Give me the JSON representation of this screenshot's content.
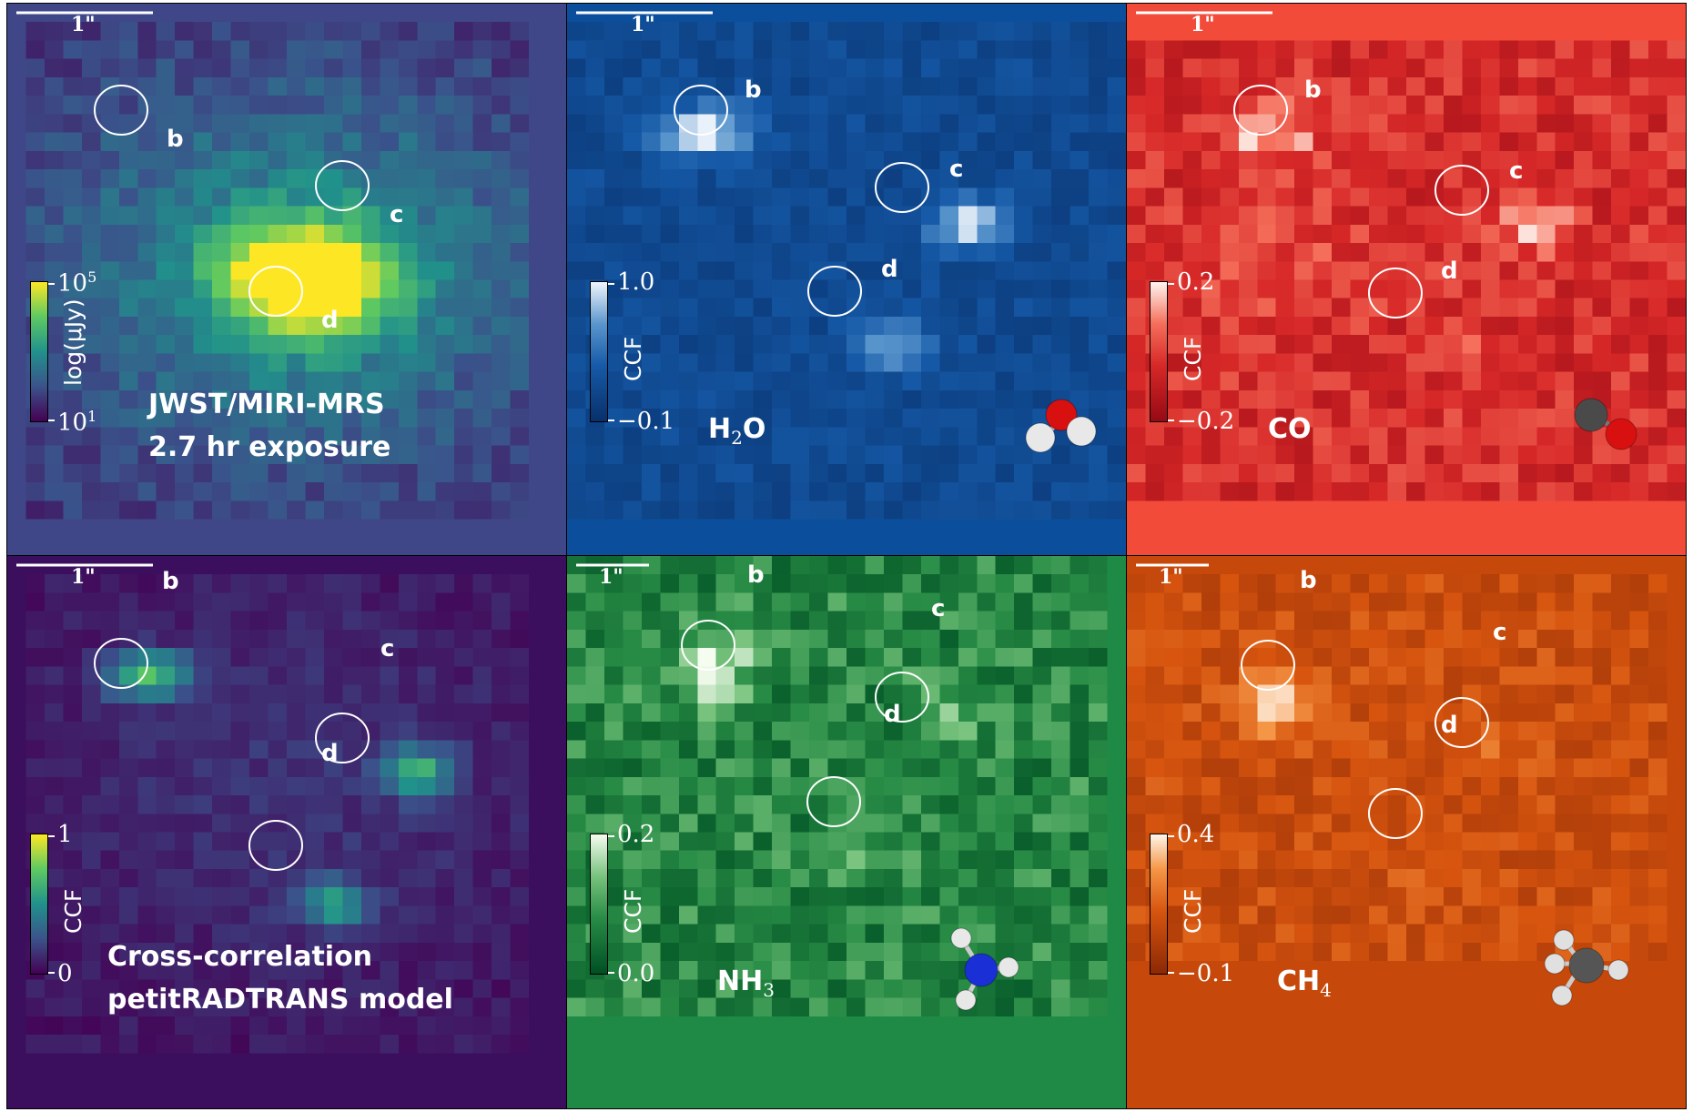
{
  "scale_bar_label": "1\"",
  "circle_labels": [
    "b",
    "c",
    "d"
  ],
  "panels": [
    {
      "id": "miri",
      "title_lines": [
        "JWST/MIRI-MRS",
        "2.7 hr exposure"
      ],
      "colormap": "viridis",
      "colorbar": {
        "top": "10^5",
        "bottom": "10^1",
        "label": "log(μJy)",
        "top_sup": "5",
        "bottom_sup": "1"
      }
    },
    {
      "id": "h2o",
      "title_lines": [
        "H2O"
      ],
      "colormap": "blue",
      "colorbar": {
        "top": "1.0",
        "bottom": "−0.1",
        "label": "CCF"
      },
      "molecule_icon": "water-molecule-icon"
    },
    {
      "id": "co",
      "title_lines": [
        "CO"
      ],
      "colormap": "red",
      "colorbar": {
        "top": "0.2",
        "bottom": "−0.2",
        "label": "CCF"
      },
      "molecule_icon": "carbon-monoxide-molecule-icon"
    },
    {
      "id": "model",
      "title_lines": [
        "Cross-correlation",
        "petitRADTRANS model"
      ],
      "colormap": "viridis",
      "colorbar": {
        "top": "1",
        "bottom": "0",
        "label": "CCF"
      }
    },
    {
      "id": "nh3",
      "title_lines": [
        "NH3"
      ],
      "colormap": "green",
      "colorbar": {
        "top": "0.2",
        "bottom": "0.0",
        "label": "CCF"
      },
      "molecule_icon": "ammonia-molecule-icon"
    },
    {
      "id": "ch4",
      "title_lines": [
        "CH4"
      ],
      "colormap": "orange",
      "colorbar": {
        "top": "0.4",
        "bottom": "−0.1",
        "label": "CCF"
      },
      "molecule_icon": "methane-molecule-icon"
    }
  ],
  "colors": {
    "miri_bg": "#3f4788",
    "model_bg": "#3b0f5e",
    "h2o_bg": "#0b4f9c",
    "co_bg": "#f24b3a",
    "nh3_bg": "#1f8a45",
    "ch4_bg": "#c6480a"
  }
}
